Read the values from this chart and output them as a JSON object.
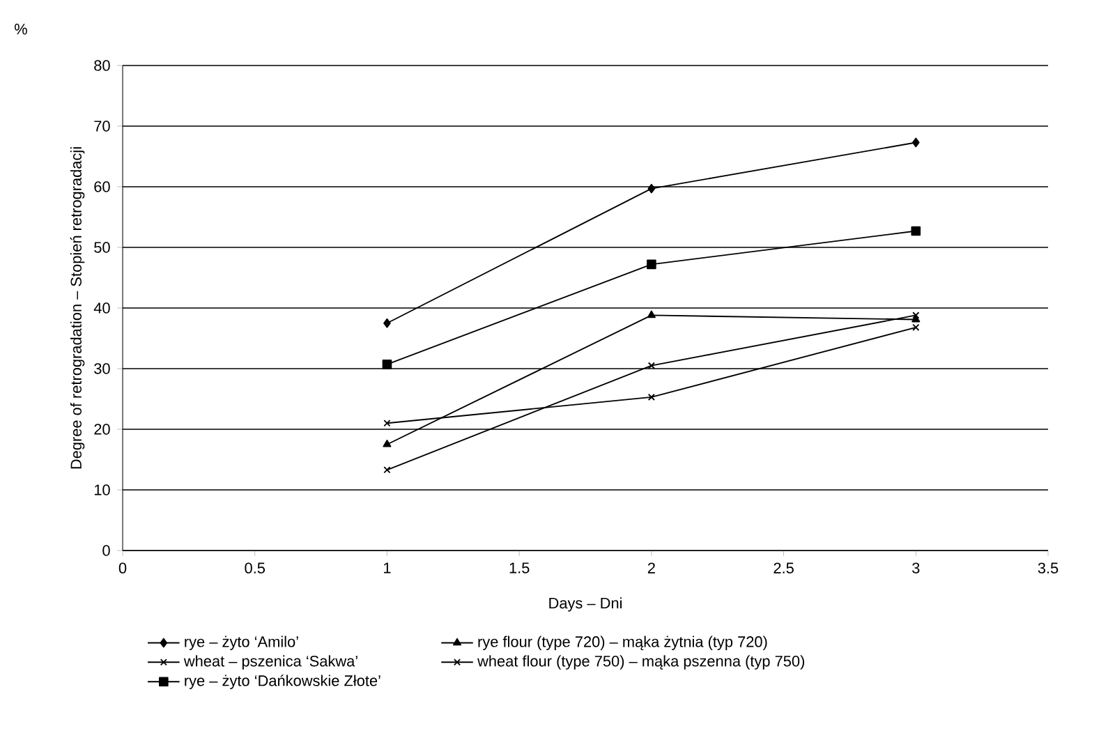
{
  "chart_data": {
    "type": "line",
    "xlabel": "Days – Dni",
    "ylabel": "Degree of retrogradation – Stopień retrogradacji",
    "annotations": [
      "%"
    ],
    "xlim": [
      0,
      3.5
    ],
    "xticks": [
      0,
      0.5,
      1,
      1.5,
      2,
      2.5,
      3,
      3.5
    ],
    "ylim": [
      0,
      80
    ],
    "yticks": [
      0,
      10,
      20,
      30,
      40,
      50,
      60,
      70,
      80
    ],
    "grid": "y",
    "legend": "bottom",
    "line_style": "solid",
    "series": [
      {
        "name": "rye – żyto ‘Amilo’",
        "color": "#000000",
        "marker": "diamond",
        "x": [
          1,
          2,
          3
        ],
        "values": [
          37.5,
          59.7,
          67.3
        ]
      },
      {
        "name": "rye flour (type 720) – mąka żytnia (typ 720)",
        "color": "#000000",
        "marker": "triangle",
        "x": [
          1,
          2,
          3
        ],
        "values": [
          17.5,
          38.8,
          38.1
        ]
      },
      {
        "name": "wheat – pszenica ‘Sakwa’",
        "color": "#000000",
        "marker": "cross",
        "x": [
          1,
          2,
          3
        ],
        "values": [
          21,
          25.3,
          36.8
        ]
      },
      {
        "name": "wheat flour (type 750) – mąka pszenna (typ 750)",
        "color": "#000000",
        "marker": "cross",
        "x": [
          1,
          2,
          3
        ],
        "values": [
          13.3,
          30.5,
          38.8
        ]
      },
      {
        "name": "rye – żyto ‘Dańkowskie Złote’",
        "color": "#000000",
        "marker": "square",
        "x": [
          1,
          2,
          3
        ],
        "values": [
          30.7,
          47.2,
          52.7
        ]
      }
    ]
  }
}
